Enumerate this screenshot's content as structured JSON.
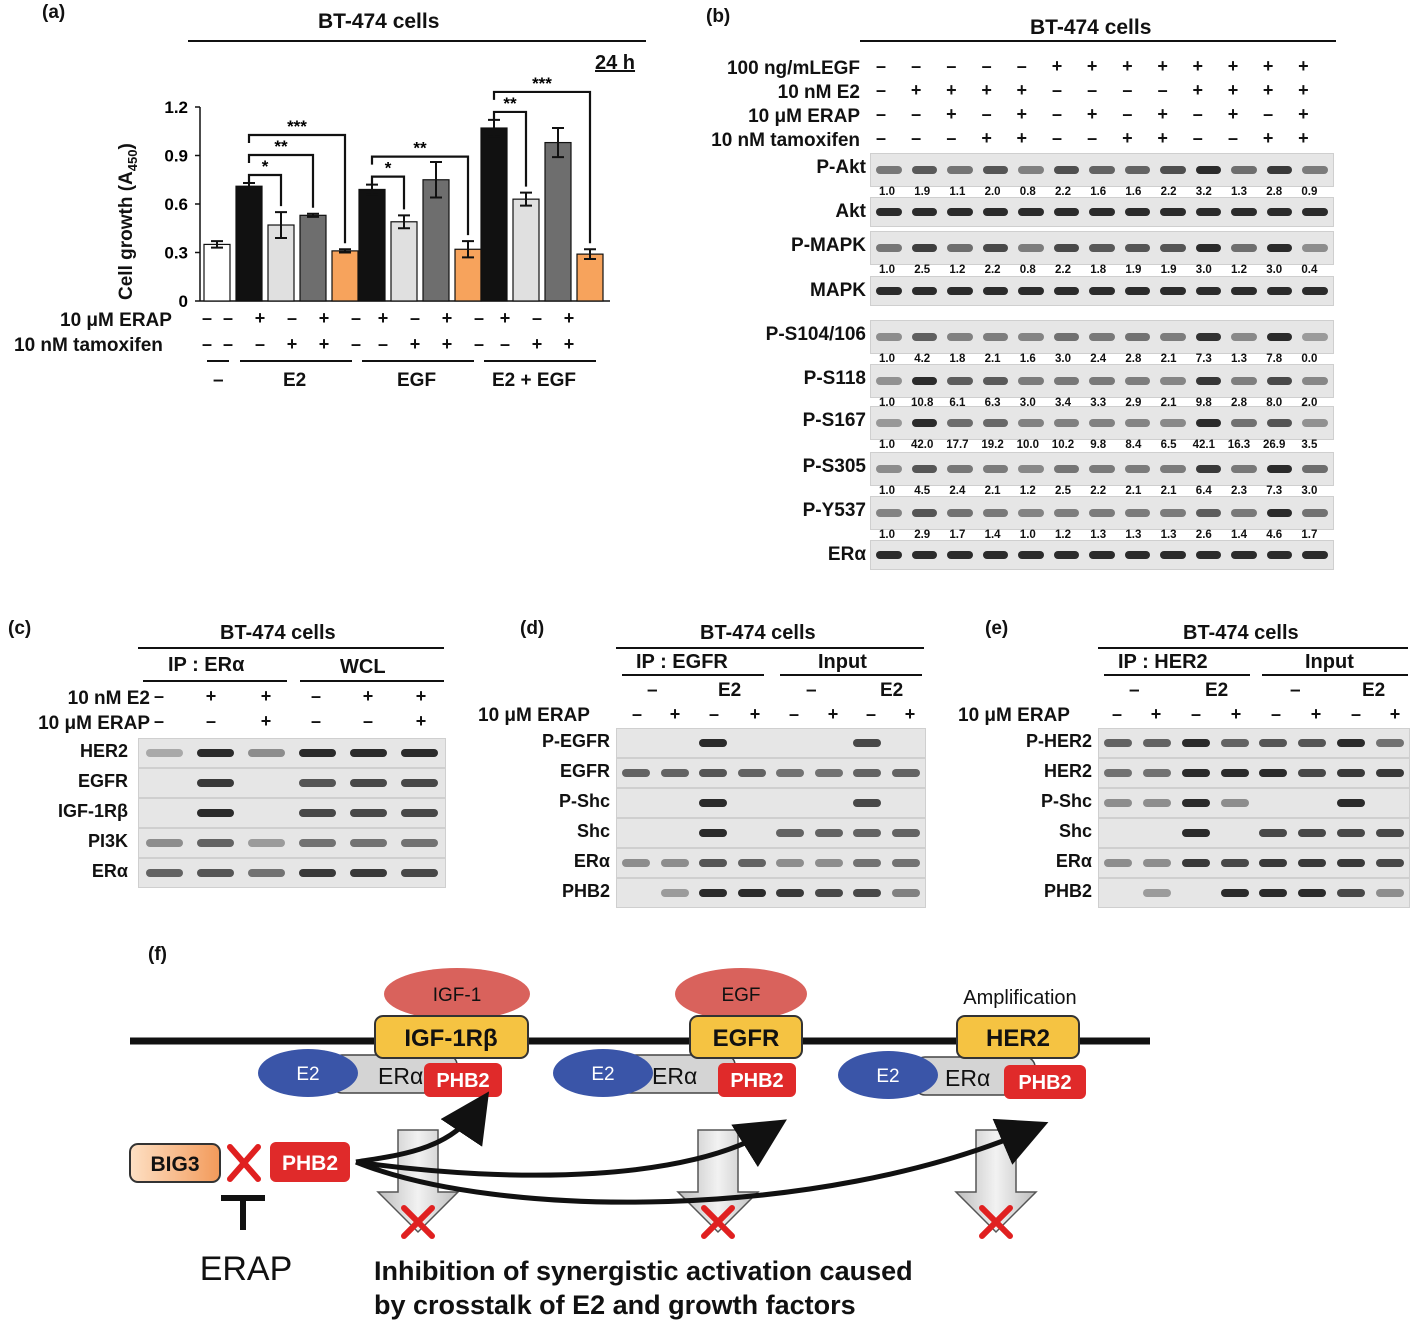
{
  "panel_a": {
    "label": "(a)",
    "cell_line": "BT-474 cells",
    "time": "24 h",
    "ylabel": "Cell growth (A450)",
    "ylabel_main": "Cell growth (A",
    "ylabel_sub": "450",
    "ylabel_close": ")",
    "y_ticks": [
      "1.2",
      "0.9",
      "0.6",
      "0.3",
      "0"
    ],
    "erap_label": "10 μM ERAP",
    "tam_label": "10 nM tamoxifen",
    "erap_signs": [
      "–",
      "–",
      "+",
      "–",
      "+",
      "–",
      "+",
      "–",
      "+",
      "–",
      "+",
      "–",
      "+"
    ],
    "tam_signs": [
      "–",
      "–",
      "–",
      "+",
      "+",
      "–",
      "–",
      "+",
      "+",
      "–",
      "–",
      "+",
      "+"
    ],
    "groups": [
      "–",
      "E2",
      "EGF",
      "E2 + EGF"
    ],
    "chart_data": {
      "type": "bar",
      "title": "BT-474 cells",
      "ylabel": "Cell growth (A450)",
      "ylim": [
        0,
        1.2
      ],
      "categories": [
        "–",
        "E2",
        "E2+ERAP",
        "E2+tamoxifen",
        "E2+ERAP+tamoxifen",
        "EGF",
        "EGF+ERAP",
        "EGF+tamoxifen",
        "EGF+ERAP+tamoxifen",
        "E2+EGF",
        "E2+EGF+ERAP",
        "E2+EGF+tamoxifen",
        "E2+EGF+ERAP+tamoxifen"
      ],
      "values": [
        0.35,
        0.71,
        0.47,
        0.53,
        0.31,
        0.69,
        0.49,
        0.75,
        0.32,
        1.07,
        0.63,
        0.98,
        0.29
      ],
      "errors": [
        0.02,
        0.02,
        0.08,
        0.01,
        0.01,
        0.03,
        0.04,
        0.11,
        0.05,
        0.05,
        0.04,
        0.09,
        0.03
      ],
      "colors": [
        "#ffffff",
        "#111111",
        "#e0e0e0",
        "#6e6e6e",
        "#f7a35c",
        "#111111",
        "#e0e0e0",
        "#6e6e6e",
        "#f7a35c",
        "#111111",
        "#e0e0e0",
        "#6e6e6e",
        "#f7a35c"
      ],
      "significance": [
        {
          "from": 1,
          "to": 2,
          "label": "*"
        },
        {
          "from": 1,
          "to": 3,
          "label": "**"
        },
        {
          "from": 1,
          "to": 4,
          "label": "***"
        },
        {
          "from": 5,
          "to": 6,
          "label": "*"
        },
        {
          "from": 5,
          "to": 8,
          "label": "**"
        },
        {
          "from": 9,
          "to": 10,
          "label": "**"
        },
        {
          "from": 9,
          "to": 12,
          "label": "***"
        }
      ]
    }
  },
  "panel_b": {
    "label": "(b)",
    "cell_line": "BT-474 cells",
    "conditions": [
      {
        "label": "100 ng/mLEGF",
        "signs": [
          "–",
          "–",
          "–",
          "–",
          "–",
          "+",
          "+",
          "+",
          "+",
          "+",
          "+",
          "+",
          "+"
        ]
      },
      {
        "label": "10 nM E2",
        "signs": [
          "–",
          "+",
          "+",
          "+",
          "+",
          "–",
          "–",
          "–",
          "–",
          "+",
          "+",
          "+",
          "+"
        ]
      },
      {
        "label": "10 μM ERAP",
        "signs": [
          "–",
          "–",
          "+",
          "–",
          "+",
          "–",
          "+",
          "–",
          "+",
          "–",
          "+",
          "–",
          "+"
        ]
      },
      {
        "label": "10 nM tamoxifen",
        "signs": [
          "–",
          "–",
          "–",
          "+",
          "+",
          "–",
          "–",
          "+",
          "+",
          "–",
          "–",
          "+",
          "+"
        ]
      }
    ],
    "blots": [
      {
        "label": "P-Akt",
        "quant": [
          "1.0",
          "1.9",
          "1.1",
          "2.0",
          "0.8",
          "2.2",
          "1.6",
          "1.6",
          "2.2",
          "3.2",
          "1.3",
          "2.8",
          "0.9"
        ]
      },
      {
        "label": "Akt",
        "quant": []
      },
      {
        "label": "P-MAPK",
        "quant": [
          "1.0",
          "2.5",
          "1.2",
          "2.2",
          "0.8",
          "2.2",
          "1.8",
          "1.9",
          "1.9",
          "3.0",
          "1.2",
          "3.0",
          "0.4"
        ]
      },
      {
        "label": "MAPK",
        "quant": []
      },
      {
        "label": "P-S104/106",
        "quant": [
          "1.0",
          "4.2",
          "1.8",
          "2.1",
          "1.6",
          "3.0",
          "2.4",
          "2.8",
          "2.1",
          "7.3",
          "1.3",
          "7.8",
          "0.0"
        ]
      },
      {
        "label": "P-S118",
        "quant": [
          "1.0",
          "10.8",
          "6.1",
          "6.3",
          "3.0",
          "3.4",
          "3.3",
          "2.9",
          "2.1",
          "9.8",
          "2.8",
          "8.0",
          "2.0"
        ]
      },
      {
        "label": "P-S167",
        "quant": [
          "1.0",
          "42.0",
          "17.7",
          "19.2",
          "10.0",
          "10.2",
          "9.8",
          "8.4",
          "6.5",
          "42.1",
          "16.3",
          "26.9",
          "3.5"
        ]
      },
      {
        "label": "P-S305",
        "quant": [
          "1.0",
          "4.5",
          "2.4",
          "2.1",
          "1.2",
          "2.5",
          "2.2",
          "2.1",
          "2.1",
          "6.4",
          "2.3",
          "7.3",
          "3.0"
        ]
      },
      {
        "label": "P-Y537",
        "quant": [
          "1.0",
          "2.9",
          "1.7",
          "1.4",
          "1.0",
          "1.2",
          "1.3",
          "1.3",
          "1.3",
          "2.6",
          "1.4",
          "4.6",
          "1.7"
        ]
      },
      {
        "label": "ERα",
        "quant": []
      }
    ]
  },
  "panel_c": {
    "label": "(c)",
    "cell_line": "BT-474 cells",
    "ip": "IP : ERα",
    "wcl": "WCL",
    "conditions": [
      {
        "label": "10 nM E2",
        "signs": [
          "–",
          "+",
          "+",
          "–",
          "+",
          "+"
        ]
      },
      {
        "label": "10 μM ERAP",
        "signs": [
          "–",
          "–",
          "+",
          "–",
          "–",
          "+"
        ]
      }
    ],
    "blots": [
      "HER2",
      "EGFR",
      "IGF-1Rβ",
      "PI3K",
      "ERα"
    ]
  },
  "panel_d": {
    "label": "(d)",
    "cell_line": "BT-474 cells",
    "ip": "IP : EGFR",
    "input": "Input",
    "group_labels": [
      "–",
      "E2",
      "–",
      "E2"
    ],
    "erap_label": "10 μM ERAP",
    "erap_signs": [
      "–",
      "+",
      "–",
      "+",
      "–",
      "+",
      "–",
      "+"
    ],
    "blots": [
      "P-EGFR",
      "EGFR",
      "P-Shc",
      "Shc",
      "ERα",
      "PHB2"
    ]
  },
  "panel_e": {
    "label": "(e)",
    "cell_line": "BT-474 cells",
    "ip": "IP : HER2",
    "input": "Input",
    "group_labels": [
      "–",
      "E2",
      "–",
      "E2"
    ],
    "erap_label": "10 μM ERAP",
    "erap_signs": [
      "–",
      "+",
      "–",
      "+",
      "–",
      "+",
      "–",
      "+"
    ],
    "blots": [
      "P-HER2",
      "HER2",
      "P-Shc",
      "Shc",
      "ERα",
      "PHB2"
    ]
  },
  "panel_f": {
    "label": "(f)",
    "ligands": [
      "IGF-1",
      "EGF"
    ],
    "receptors": [
      "IGF-1Rβ",
      "EGFR",
      "HER2"
    ],
    "amplification": "Amplification",
    "e2": "E2",
    "era": "ERα",
    "phb2": "PHB2",
    "big3": "BIG3",
    "erap": "ERAP",
    "caption_line1": "Inhibition of synergistic activation caused",
    "caption_line2": "by crosstalk of E2 and growth factors",
    "colors": {
      "ligand": "#d9625c",
      "receptor": "#f5c342",
      "e2": "#3a55a8",
      "era": "#d0d0d0",
      "phb2": "#e02a2a",
      "big3": "#f4a574",
      "cross": "#e02020"
    }
  }
}
